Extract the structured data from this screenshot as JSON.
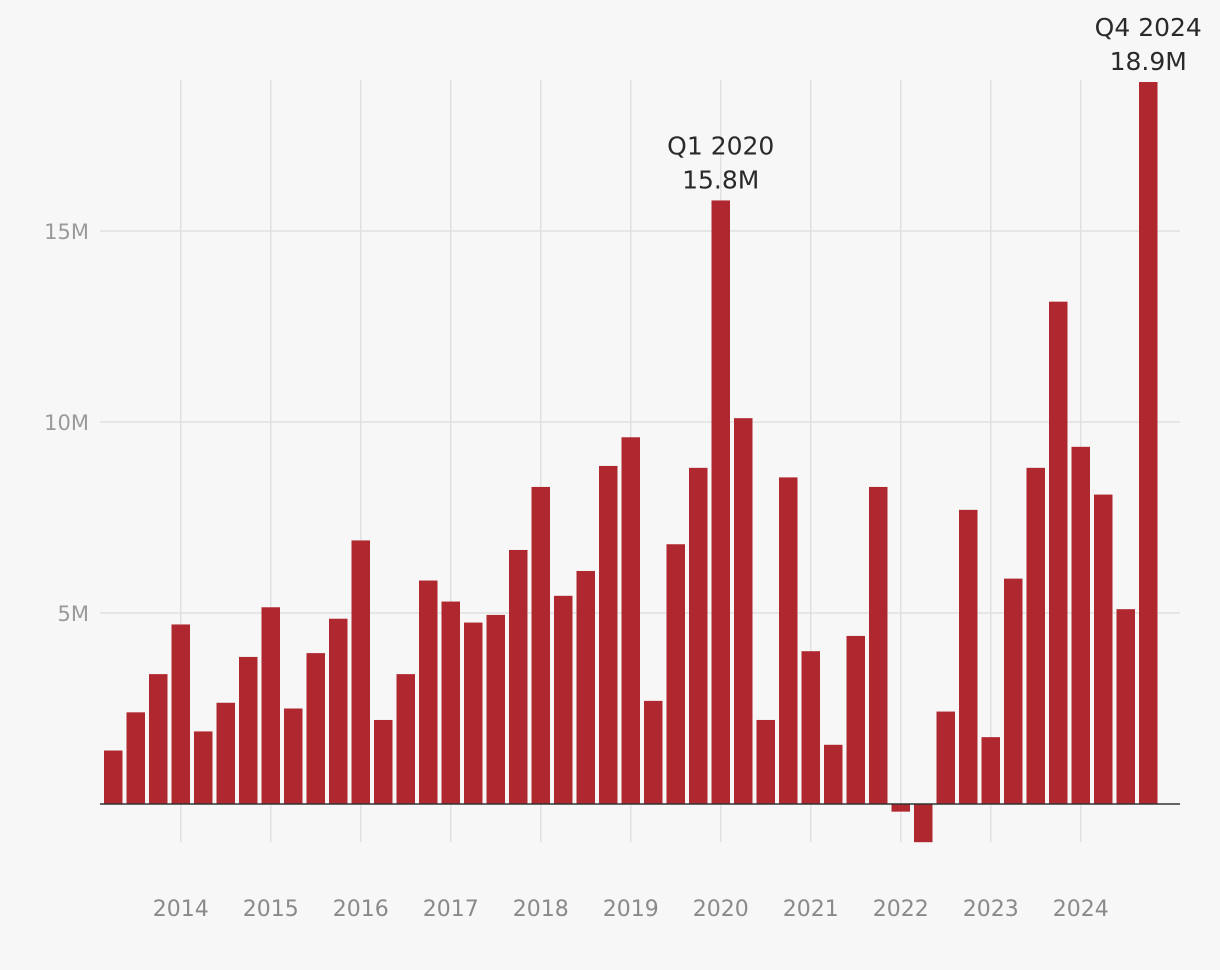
{
  "chart_data": {
    "type": "bar",
    "bar_color": "#b0282f",
    "background_color": "#f7f7f7",
    "ylim": [
      -2,
      19
    ],
    "y_ticks": [
      {
        "value": 5,
        "label": "5M"
      },
      {
        "value": 10,
        "label": "10M"
      },
      {
        "value": 15,
        "label": "15M"
      }
    ],
    "x_ticks": [
      "2014",
      "2015",
      "2016",
      "2017",
      "2018",
      "2019",
      "2020",
      "2021",
      "2022",
      "2023",
      "2024"
    ],
    "periods": [
      "Q2 2013",
      "Q3 2013",
      "Q4 2013",
      "Q1 2014",
      "Q2 2014",
      "Q3 2014",
      "Q4 2014",
      "Q1 2015",
      "Q2 2015",
      "Q3 2015",
      "Q4 2015",
      "Q1 2016",
      "Q2 2016",
      "Q3 2016",
      "Q4 2016",
      "Q1 2017",
      "Q2 2017",
      "Q3 2017",
      "Q4 2017",
      "Q1 2018",
      "Q2 2018",
      "Q3 2018",
      "Q4 2018",
      "Q1 2019",
      "Q2 2019",
      "Q3 2019",
      "Q4 2019",
      "Q1 2020",
      "Q2 2020",
      "Q3 2020",
      "Q4 2020",
      "Q1 2021",
      "Q2 2021",
      "Q3 2021",
      "Q4 2021",
      "Q1 2022",
      "Q2 2022",
      "Q3 2022",
      "Q4 2022",
      "Q1 2023",
      "Q2 2023",
      "Q3 2023",
      "Q4 2023",
      "Q1 2024",
      "Q2 2024",
      "Q3 2024",
      "Q4 2024"
    ],
    "values": [
      1.4,
      2.4,
      3.4,
      4.7,
      1.9,
      2.65,
      3.85,
      5.15,
      2.5,
      3.95,
      4.85,
      6.9,
      2.2,
      3.4,
      5.85,
      5.3,
      4.75,
      4.95,
      6.65,
      8.3,
      5.45,
      6.1,
      8.85,
      9.6,
      2.7,
      6.8,
      8.8,
      15.8,
      10.1,
      2.2,
      8.55,
      4.0,
      1.55,
      4.4,
      8.3,
      -0.2,
      -1.0,
      2.42,
      7.7,
      1.75,
      5.9,
      8.8,
      13.15,
      9.35,
      8.1,
      5.1,
      18.9
    ],
    "annotations": [
      {
        "index": 27,
        "period": "Q1 2020",
        "value_label": "15.8M"
      },
      {
        "index": 46,
        "period": "Q4 2024",
        "value_label": "18.9M"
      }
    ]
  }
}
